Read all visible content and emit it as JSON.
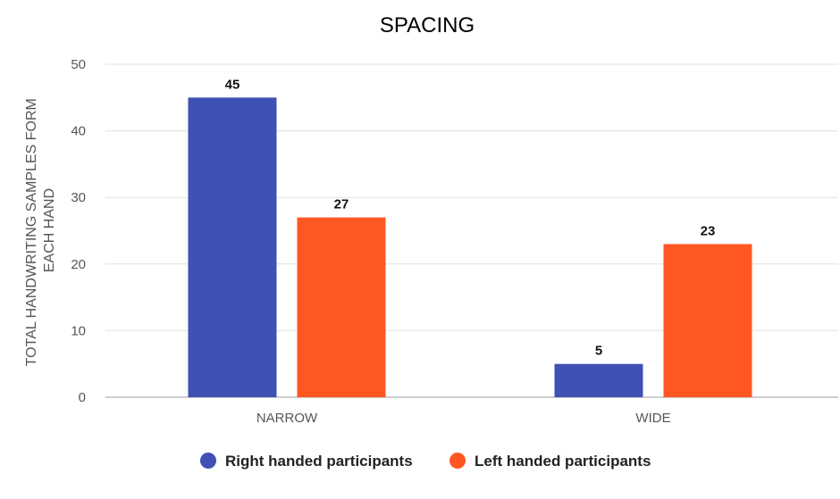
{
  "chart_data": {
    "type": "bar",
    "title": "SPACING",
    "ylabel": [
      "TOTAL HANDWRITING SAMPLES FORM",
      "EACH HAND"
    ],
    "xlabel": "",
    "categories": [
      "NARROW",
      "WIDE"
    ],
    "ylim": [
      0,
      50
    ],
    "yticks": [
      0,
      10,
      20,
      30,
      40,
      50
    ],
    "grid": true,
    "legend_position": "bottom",
    "series": [
      {
        "name": "Right handed participants",
        "color": "#3f51b5",
        "values": [
          45,
          5
        ]
      },
      {
        "name": "Left handed participants",
        "color": "#ff5722",
        "values": [
          27,
          23
        ]
      }
    ]
  }
}
